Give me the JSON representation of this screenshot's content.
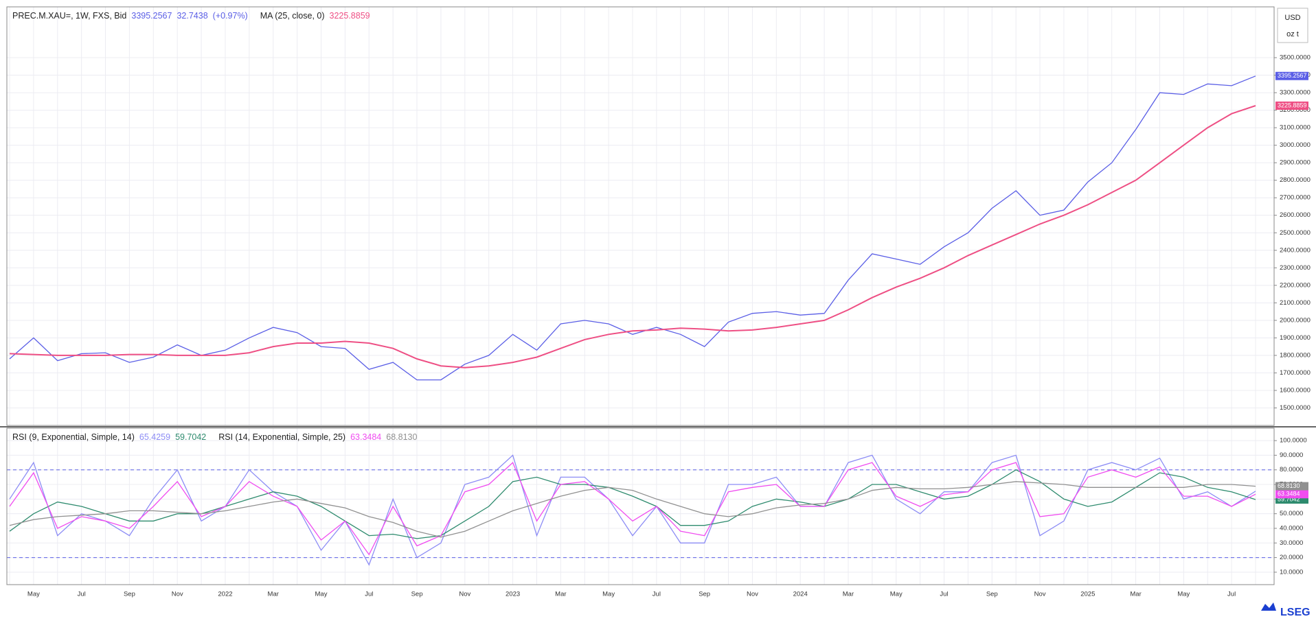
{
  "axis_unit": {
    "currency": "USD",
    "unit": "oz t"
  },
  "logo": "LSEG",
  "chart_data": [
    {
      "type": "line",
      "series": [
        {
          "name": "PREC.M.XAU=, 1W, FXS, Bid",
          "color": "#5a5ee6",
          "last_label": "3395.2567",
          "change": "32.7438",
          "change_pct": "(+0.97%)",
          "values": [
            1780,
            1900,
            1770,
            1810,
            1815,
            1760,
            1790,
            1860,
            1800,
            1830,
            1900,
            1960,
            1930,
            1850,
            1840,
            1720,
            1760,
            1660,
            1660,
            1750,
            1800,
            1920,
            1830,
            1980,
            2000,
            1980,
            1920,
            1960,
            1920,
            1850,
            1990,
            2040,
            2050,
            2030,
            2040,
            2230,
            2380,
            2350,
            2320,
            2420,
            2500,
            2640,
            2740,
            2600,
            2630,
            2790,
            2900,
            3090,
            3300,
            3290,
            3350,
            3340,
            3395.2567
          ]
        },
        {
          "name": "MA (25, close, 0)",
          "color": "#ee4f84",
          "last_label": "3225.8859",
          "values": [
            1810,
            1805,
            1800,
            1800,
            1800,
            1805,
            1805,
            1800,
            1800,
            1800,
            1815,
            1850,
            1870,
            1870,
            1880,
            1870,
            1840,
            1780,
            1740,
            1730,
            1740,
            1760,
            1790,
            1840,
            1890,
            1920,
            1940,
            1945,
            1955,
            1950,
            1940,
            1945,
            1960,
            1980,
            2000,
            2060,
            2130,
            2190,
            2240,
            2300,
            2370,
            2430,
            2490,
            2550,
            2600,
            2660,
            2730,
            2800,
            2900,
            3000,
            3100,
            3180,
            3225.8859
          ]
        }
      ],
      "ylim": [
        1400,
        3790
      ],
      "yticks": [
        {
          "value": 1500,
          "label": "1500.0000"
        },
        {
          "value": 1600,
          "label": "1600.0000"
        },
        {
          "value": 1700,
          "label": "1700.0000"
        },
        {
          "value": 1800,
          "label": "1800.0000"
        },
        {
          "value": 1900,
          "label": "1900.0000"
        },
        {
          "value": 2000,
          "label": "2000.0000"
        },
        {
          "value": 2100,
          "label": "2100.0000"
        },
        {
          "value": 2200,
          "label": "2200.0000"
        },
        {
          "value": 2300,
          "label": "2300.0000"
        },
        {
          "value": 2400,
          "label": "2400.0000"
        },
        {
          "value": 2500,
          "label": "2500.0000"
        },
        {
          "value": 2600,
          "label": "2600.0000"
        },
        {
          "value": 2700,
          "label": "2700.0000"
        },
        {
          "value": 2800,
          "label": "2800.0000"
        },
        {
          "value": 2900,
          "label": "2900.0000"
        },
        {
          "value": 3000,
          "label": "3000.0000"
        },
        {
          "value": 3100,
          "label": "3100.0000"
        },
        {
          "value": 3200,
          "label": "3200.0000"
        },
        {
          "value": 3300,
          "label": "3300.0000"
        },
        {
          "value": 3400,
          "label": "3400.0000"
        },
        {
          "value": 3500,
          "label": "3500.0000"
        }
      ],
      "grid": true
    },
    {
      "type": "line",
      "categories": [
        null,
        "May",
        null,
        "Jul",
        null,
        "Sep",
        null,
        "Nov",
        null,
        "2022",
        null,
        "Mar",
        null,
        "May",
        null,
        "Jul",
        null,
        "Sep",
        null,
        "Nov",
        null,
        "2023",
        null,
        "Mar",
        null,
        "May",
        null,
        "Jul",
        null,
        "Sep",
        null,
        "Nov",
        null,
        "2024",
        null,
        "Mar",
        null,
        "May",
        null,
        "Jul",
        null,
        "Sep",
        null,
        "Nov",
        null,
        "2025",
        null,
        "Mar",
        null,
        "May",
        null,
        "Jul",
        null
      ],
      "series": [
        {
          "name": "RSI (9, Exponential, Simple, 14)",
          "color": "#8c8cf5",
          "last_label": "65.4259",
          "values": [
            60,
            85,
            35,
            50,
            45,
            35,
            60,
            80,
            45,
            55,
            80,
            65,
            55,
            25,
            45,
            15,
            60,
            20,
            30,
            70,
            75,
            90,
            35,
            75,
            75,
            60,
            35,
            55,
            30,
            30,
            70,
            70,
            75,
            55,
            55,
            85,
            90,
            60,
            50,
            65,
            65,
            85,
            90,
            35,
            45,
            80,
            85,
            80,
            88,
            60,
            65,
            55,
            65.4259
          ]
        },
        {
          "color": "#2e8b6e",
          "last_label": "59.7042",
          "values": [
            38,
            50,
            58,
            55,
            50,
            45,
            45,
            50,
            50,
            55,
            60,
            65,
            62,
            55,
            45,
            35,
            36,
            33,
            35,
            45,
            55,
            72,
            75,
            70,
            70,
            68,
            62,
            55,
            42,
            42,
            45,
            55,
            60,
            58,
            55,
            60,
            70,
            70,
            65,
            60,
            62,
            70,
            80,
            72,
            60,
            55,
            58,
            68,
            78,
            75,
            68,
            65,
            59.7042
          ]
        },
        {
          "name": "RSI (14, Exponential, Simple, 25)",
          "color": "#f04cf0",
          "last_label": "63.3484",
          "values": [
            55,
            78,
            40,
            48,
            45,
            40,
            55,
            72,
            48,
            55,
            72,
            62,
            55,
            32,
            45,
            22,
            55,
            28,
            35,
            65,
            70,
            85,
            45,
            70,
            72,
            60,
            45,
            55,
            38,
            35,
            65,
            68,
            70,
            55,
            55,
            80,
            85,
            62,
            55,
            63,
            65,
            80,
            85,
            48,
            50,
            75,
            80,
            75,
            82,
            62,
            62,
            55,
            63.3484
          ]
        },
        {
          "color": "#909090",
          "last_label": "68.8130",
          "values": [
            42,
            46,
            48,
            49,
            50,
            52,
            52,
            51,
            50,
            52,
            55,
            58,
            60,
            57,
            54,
            48,
            44,
            38,
            34,
            38,
            45,
            52,
            57,
            62,
            66,
            68,
            66,
            60,
            55,
            50,
            48,
            50,
            54,
            56,
            57,
            60,
            66,
            68,
            67,
            67,
            68,
            70,
            72,
            71,
            70,
            68,
            68,
            68,
            68,
            68,
            70,
            70,
            68.813
          ]
        }
      ],
      "levels": [
        80,
        20
      ],
      "ylim": [
        1.5,
        108.5
      ],
      "yticks": [
        {
          "value": 10,
          "label": "10.0000"
        },
        {
          "value": 20,
          "label": "20.0000"
        },
        {
          "value": 30,
          "label": "30.0000"
        },
        {
          "value": 40,
          "label": "40.0000"
        },
        {
          "value": 50,
          "label": "50.0000"
        },
        {
          "value": 60,
          "label": "60.0000"
        },
        {
          "value": 70,
          "label": "70.0000"
        },
        {
          "value": 80,
          "label": "80.0000"
        },
        {
          "value": 90,
          "label": "90.0000"
        },
        {
          "value": 100,
          "label": "100.0000"
        }
      ],
      "grid": true
    }
  ]
}
